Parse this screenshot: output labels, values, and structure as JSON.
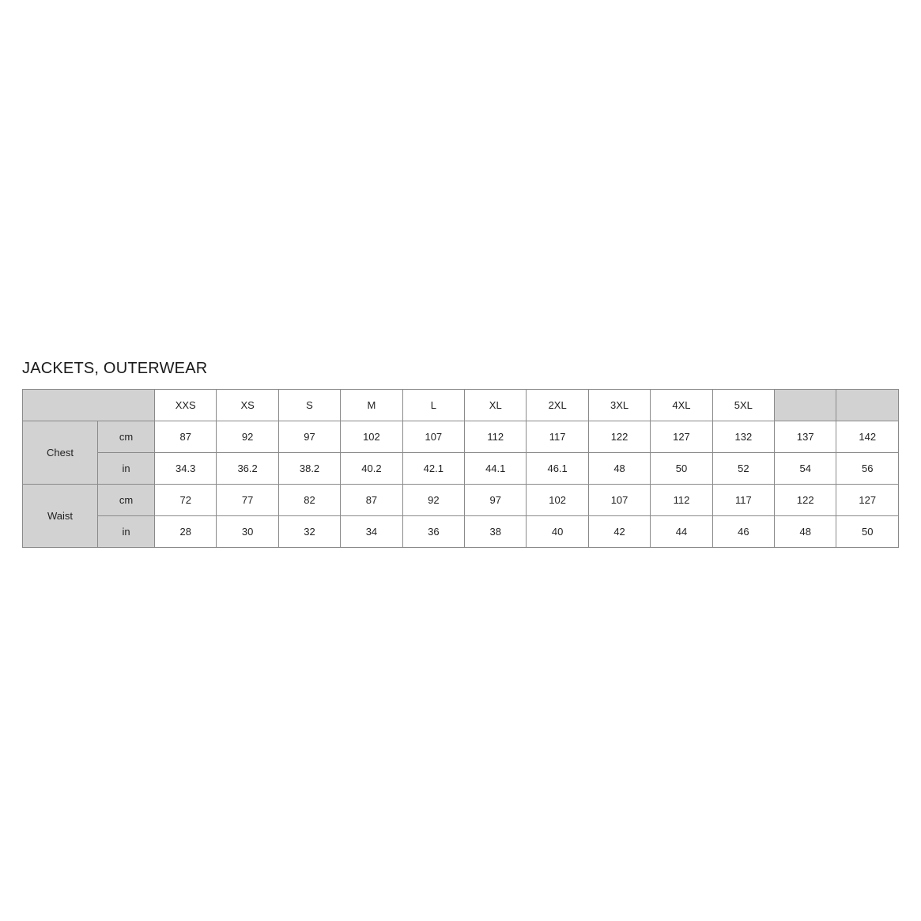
{
  "page": {
    "title": "JACKETS, OUTERWEAR"
  },
  "colors": {
    "background": "#ffffff",
    "header_cell_bg": "#d2d2d2",
    "border": "#8a8a8a",
    "text": "#222222",
    "title_text": "#1a1a1a"
  },
  "table": {
    "corner_label": "",
    "size_headers": [
      "XXS",
      "XS",
      "S",
      "M",
      "L",
      "XL",
      "2XL",
      "3XL",
      "4XL",
      "5XL"
    ],
    "extra_headers": [
      "",
      ""
    ],
    "sections": [
      {
        "label": "Chest",
        "rows": [
          {
            "unit": "cm",
            "values": [
              "87",
              "92",
              "97",
              "102",
              "107",
              "112",
              "117",
              "122",
              "127",
              "132",
              "137",
              "142"
            ]
          },
          {
            "unit": "in",
            "values": [
              "34.3",
              "36.2",
              "38.2",
              "40.2",
              "42.1",
              "44.1",
              "46.1",
              "48",
              "50",
              "52",
              "54",
              "56"
            ]
          }
        ]
      },
      {
        "label": "Waist",
        "rows": [
          {
            "unit": "cm",
            "values": [
              "72",
              "77",
              "82",
              "87",
              "92",
              "97",
              "102",
              "107",
              "112",
              "117",
              "122",
              "127"
            ]
          },
          {
            "unit": "in",
            "values": [
              "28",
              "30",
              "32",
              "34",
              "36",
              "38",
              "40",
              "42",
              "44",
              "46",
              "48",
              "50"
            ]
          }
        ]
      }
    ]
  }
}
